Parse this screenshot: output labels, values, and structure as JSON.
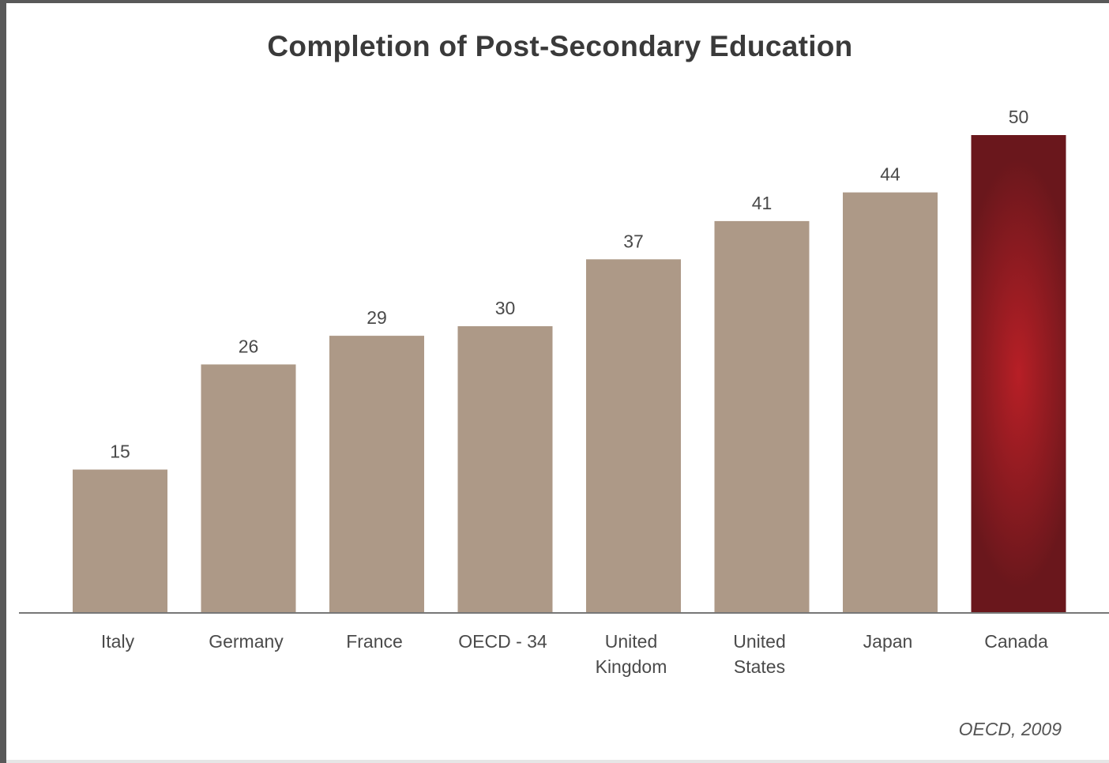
{
  "chart_data": {
    "type": "bar",
    "title": "Completion of Post-Secondary Education",
    "categories": [
      [
        "Italy"
      ],
      [
        "Germany"
      ],
      [
        "France"
      ],
      [
        "OECD - 34"
      ],
      [
        "United",
        "Kingdom"
      ],
      [
        "United",
        "States"
      ],
      [
        "Japan"
      ],
      [
        "Canada"
      ]
    ],
    "values": [
      15,
      26,
      29,
      30,
      37,
      41,
      44,
      50
    ],
    "highlight_index": 7,
    "ylim": [
      0,
      50
    ],
    "grid": false,
    "xlabel": "",
    "ylabel": "",
    "colors": {
      "bar": "#ad9987",
      "highlight_center": "#b71f26",
      "highlight_edge": "#6a171c",
      "axis": "#777777"
    }
  },
  "source_note": "OECD, 2009"
}
